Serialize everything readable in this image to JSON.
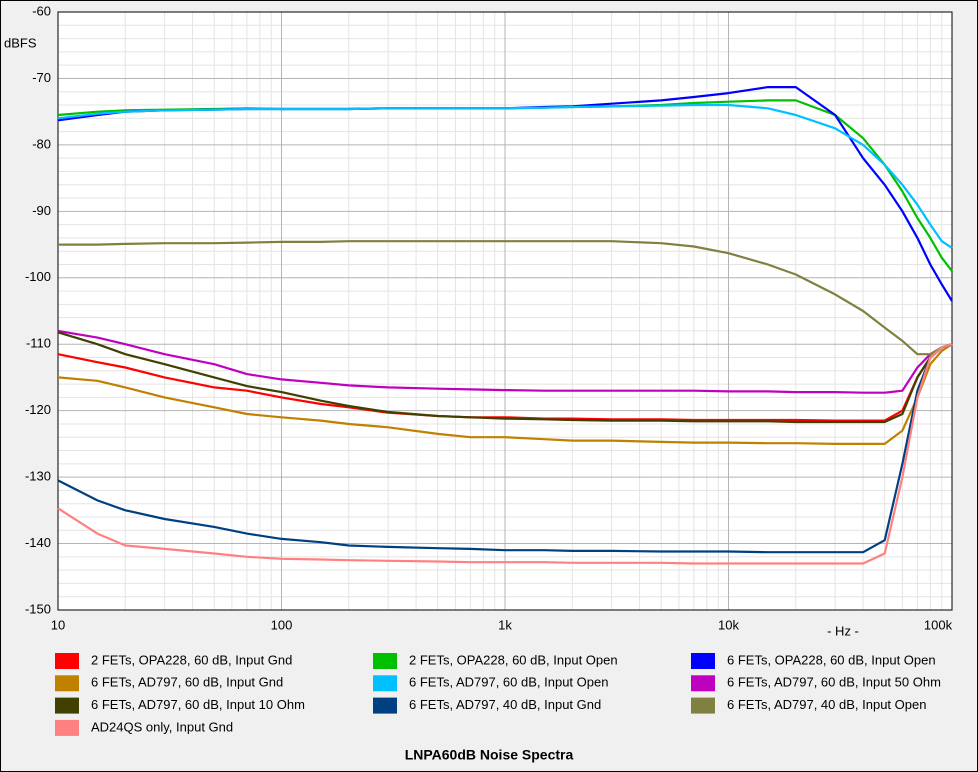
{
  "chart_data": {
    "type": "line",
    "title": "LNPA60dB Noise Spectra",
    "ylabel": "dBFS",
    "xlabel": "- Hz -",
    "xscale": "log",
    "grid": true,
    "xlim": [
      10,
      100000
    ],
    "xticks": [
      10,
      100,
      {
        "value": 1000,
        "label": "1k"
      },
      {
        "value": 10000,
        "label": "10k"
      },
      {
        "value": 100000,
        "label": "100k"
      }
    ],
    "xminorticks": [
      20,
      30,
      40,
      50,
      60,
      70,
      80,
      90,
      200,
      300,
      400,
      500,
      600,
      700,
      800,
      900,
      2000,
      3000,
      4000,
      5000,
      6000,
      7000,
      8000,
      9000,
      20000,
      30000,
      40000,
      50000,
      60000,
      70000,
      80000,
      90000
    ],
    "ylim": [
      -150,
      -60
    ],
    "yticks": [
      -60,
      -70,
      -80,
      -90,
      -100,
      -110,
      -120,
      -130,
      -140,
      -150
    ],
    "yminorticks": [
      -62,
      -64,
      -66,
      -68,
      -72,
      -74,
      -76,
      -78,
      -82,
      -84,
      -86,
      -88,
      -92,
      -94,
      -96,
      -98,
      -102,
      -104,
      -106,
      -108,
      -112,
      -114,
      -116,
      -118,
      -122,
      -124,
      -126,
      -128,
      -132,
      -134,
      -136,
      -138,
      -142,
      -144,
      -146,
      -148
    ],
    "x": [
      10,
      15,
      20,
      30,
      50,
      70,
      100,
      150,
      200,
      300,
      500,
      700,
      1000,
      1500,
      2000,
      3000,
      5000,
      7000,
      10000,
      15000,
      20000,
      30000,
      40000,
      50000,
      60000,
      70000,
      80000,
      90000,
      100000
    ],
    "series": [
      {
        "name": "2 FETs, OPA228, 60 dB, Input Gnd",
        "color": "#ff0000",
        "values": [
          -111.5,
          -112.7,
          -113.5,
          -115,
          -116.5,
          -117,
          -118,
          -119,
          -119.5,
          -120.3,
          -120.8,
          -121,
          -121,
          -121.2,
          -121.2,
          -121.3,
          -121.3,
          -121.4,
          -121.4,
          -121.4,
          -121.4,
          -121.5,
          -121.5,
          -121.5,
          -120,
          -115,
          -112,
          -110.5,
          -110
        ]
      },
      {
        "name": "2 FETs, OPA228, 60 dB, Input Open",
        "color": "#00c000",
        "values": [
          -75.5,
          -75,
          -74.8,
          -74.7,
          -74.6,
          -74.5,
          -74.6,
          -74.6,
          -74.6,
          -74.5,
          -74.5,
          -74.5,
          -74.5,
          -74.4,
          -74.3,
          -74.2,
          -74,
          -73.7,
          -73.5,
          -73.3,
          -73.3,
          -75.5,
          -79,
          -83,
          -87,
          -91,
          -94,
          -97,
          -99
        ]
      },
      {
        "name": "6 FETs, OPA228, 60 dB, Input Open",
        "color": "#0000ff",
        "values": [
          -76.3,
          -75.5,
          -75,
          -74.8,
          -74.7,
          -74.6,
          -74.6,
          -74.6,
          -74.6,
          -74.5,
          -74.5,
          -74.5,
          -74.5,
          -74.3,
          -74.2,
          -73.8,
          -73.3,
          -72.8,
          -72.2,
          -71.3,
          -71.3,
          -75.5,
          -82,
          -86,
          -90,
          -94,
          -98,
          -101,
          -103.5
        ]
      },
      {
        "name": "6 FETs, AD797, 60 dB, Input Gnd",
        "color": "#c08000",
        "values": [
          -115,
          -115.5,
          -116.5,
          -118,
          -119.5,
          -120.5,
          -121,
          -121.5,
          -122,
          -122.5,
          -123.5,
          -124,
          -124,
          -124.3,
          -124.5,
          -124.5,
          -124.7,
          -124.8,
          -124.8,
          -124.9,
          -124.9,
          -125,
          -125,
          -125,
          -123,
          -118,
          -113,
          -111,
          -110
        ]
      },
      {
        "name": "6 FETs, AD797, 60 dB, Input Open",
        "color": "#00c0ff",
        "values": [
          -76,
          -75.3,
          -75,
          -74.8,
          -74.7,
          -74.6,
          -74.6,
          -74.6,
          -74.6,
          -74.5,
          -74.5,
          -74.5,
          -74.5,
          -74.4,
          -74.3,
          -74.2,
          -74.1,
          -74,
          -74,
          -74.5,
          -75.5,
          -77.5,
          -80,
          -83,
          -86,
          -89,
          -92,
          -94.5,
          -95.5
        ]
      },
      {
        "name": "6 FETs, AD797, 60 dB, Input 50 Ohm",
        "color": "#c000c0",
        "values": [
          -108,
          -109,
          -110,
          -111.5,
          -113,
          -114.5,
          -115.3,
          -115.8,
          -116.2,
          -116.5,
          -116.7,
          -116.8,
          -116.9,
          -117,
          -117,
          -117,
          -117,
          -117,
          -117.1,
          -117.1,
          -117.2,
          -117.2,
          -117.3,
          -117.3,
          -117,
          -113.5,
          -111.5,
          -110.5,
          -110
        ]
      },
      {
        "name": "6 FETs, AD797, 60 dB, Input 10 Ohm",
        "color": "#404000",
        "values": [
          -108.2,
          -110,
          -111.5,
          -113,
          -115,
          -116.3,
          -117.2,
          -118.5,
          -119.3,
          -120.2,
          -120.8,
          -121,
          -121.2,
          -121.3,
          -121.4,
          -121.5,
          -121.5,
          -121.6,
          -121.6,
          -121.6,
          -121.7,
          -121.7,
          -121.7,
          -121.7,
          -120.5,
          -115,
          -112,
          -110.5,
          -110
        ]
      },
      {
        "name": "6 FETs, AD797, 40 dB, Input Gnd",
        "color": "#004080",
        "values": [
          -130.5,
          -133.5,
          -135,
          -136.3,
          -137.5,
          -138.5,
          -139.3,
          -139.8,
          -140.3,
          -140.5,
          -140.7,
          -140.8,
          -141,
          -141,
          -141.1,
          -141.1,
          -141.2,
          -141.2,
          -141.2,
          -141.3,
          -141.3,
          -141.3,
          -141.3,
          -139.5,
          -128,
          -117,
          -112,
          -110.5,
          -110
        ]
      },
      {
        "name": "6 FETs, AD797, 40 dB, Input Open",
        "color": "#808040",
        "values": [
          -95,
          -95,
          -94.9,
          -94.8,
          -94.8,
          -94.7,
          -94.6,
          -94.6,
          -94.5,
          -94.5,
          -94.5,
          -94.5,
          -94.5,
          -94.5,
          -94.5,
          -94.5,
          -94.8,
          -95.3,
          -96.3,
          -98,
          -99.5,
          -102.5,
          -105,
          -107.5,
          -109.5,
          -111.5,
          -111.5,
          -110.5,
          -110
        ]
      },
      {
        "name": "AD24QS only, Input Gnd",
        "color": "#ff8080",
        "values": [
          -134.7,
          -138.5,
          -140.3,
          -140.8,
          -141.5,
          -142,
          -142.3,
          -142.4,
          -142.5,
          -142.6,
          -142.7,
          -142.8,
          -142.8,
          -142.8,
          -142.9,
          -142.9,
          -142.9,
          -143,
          -143,
          -143,
          -143,
          -143,
          -143,
          -141.5,
          -130,
          -118,
          -112,
          -110.5,
          -110
        ]
      }
    ]
  }
}
